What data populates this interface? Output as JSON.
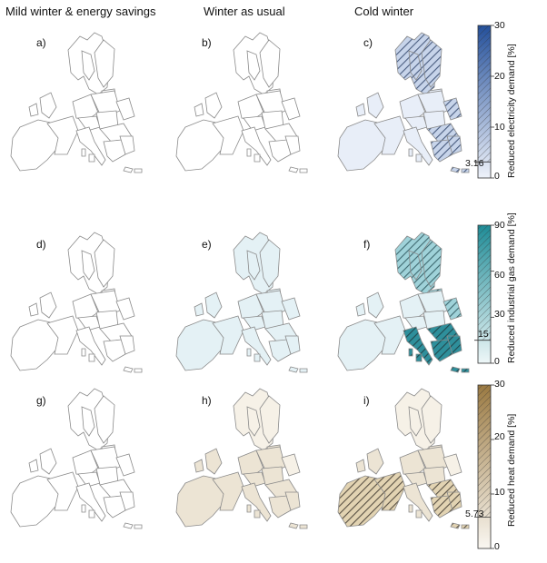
{
  "columns": [
    {
      "title": "Mild winter & energy savings"
    },
    {
      "title": "Winter as usual"
    },
    {
      "title": "Cold winter"
    }
  ],
  "panels": [
    {
      "label": "a)",
      "row": 0,
      "col": 0
    },
    {
      "label": "b)",
      "row": 0,
      "col": 1
    },
    {
      "label": "c)",
      "row": 0,
      "col": 2
    },
    {
      "label": "d)",
      "row": 1,
      "col": 0
    },
    {
      "label": "e)",
      "row": 1,
      "col": 1
    },
    {
      "label": "f)",
      "row": 1,
      "col": 2
    },
    {
      "label": "g)",
      "row": 2,
      "col": 0
    },
    {
      "label": "h)",
      "row": 2,
      "col": 1
    },
    {
      "label": "i)",
      "row": 2,
      "col": 2
    }
  ],
  "colorbars": [
    {
      "label": "Reduced electricity demand [%]",
      "ticks": [
        "30",
        "20",
        "10",
        "0"
      ],
      "min": 0,
      "max": 30,
      "threshold": 3.16,
      "threshold_label": "3.16",
      "color_low": "#eef2fa",
      "color_high": "#24509b"
    },
    {
      "label": "Reduced industrial gas demand [%]",
      "ticks": [
        "90",
        "60",
        "30",
        "0"
      ],
      "min": 0,
      "max": 90,
      "threshold": 15,
      "threshold_label": "15",
      "color_low": "#eef7f8",
      "color_high": "#1f8c97"
    },
    {
      "label": "Reduced heat demand [%]",
      "ticks": [
        "30",
        "20",
        "10",
        "0"
      ],
      "min": 0,
      "max": 30,
      "threshold": 5.73,
      "threshold_label": "5.73",
      "color_low": "#faf7f1",
      "color_high": "#9b7a42"
    }
  ],
  "colors": {
    "outline": "#8a8a8a",
    "electricity_fill": "#e8eef8",
    "gas_fill": "#e4f1f5",
    "gas_strong": "#2b8a96",
    "heat_fill": "#ece4d4",
    "heat_light": "#f6f1e7"
  }
}
